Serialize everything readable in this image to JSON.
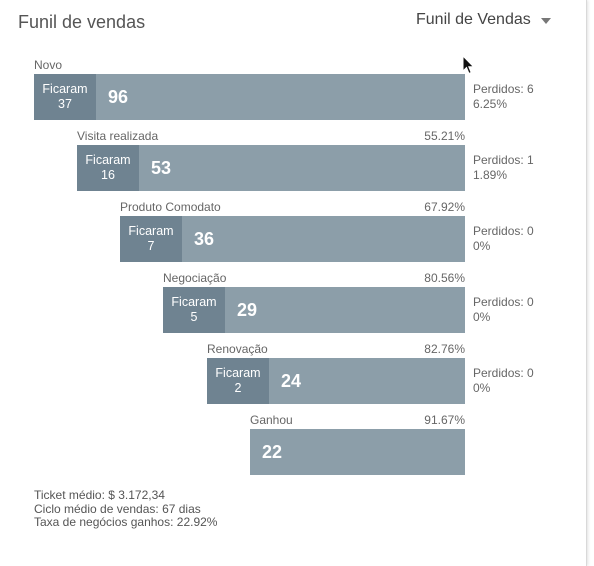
{
  "header": {
    "title": "Funil de vendas",
    "selector_label": "Funil de Vendas"
  },
  "stages": [
    {
      "name": "Novo",
      "percent": "",
      "stay_label": "Ficaram",
      "stay_count": "37",
      "value": "96",
      "lost_label": "Perdidos: 6",
      "lost_percent": "6.25%"
    },
    {
      "name": "Visita realizada",
      "percent": "55.21%",
      "stay_label": "Ficaram",
      "stay_count": "16",
      "value": "53",
      "lost_label": "Perdidos: 1",
      "lost_percent": "1.89%"
    },
    {
      "name": "Produto Comodato",
      "percent": "67.92%",
      "stay_label": "Ficaram",
      "stay_count": "7",
      "value": "36",
      "lost_label": "Perdidos: 0",
      "lost_percent": "0%"
    },
    {
      "name": "Negociação",
      "percent": "80.56%",
      "stay_label": "Ficaram",
      "stay_count": "5",
      "value": "29",
      "lost_label": "Perdidos: 0",
      "lost_percent": "0%"
    },
    {
      "name": "Renovação",
      "percent": "82.76%",
      "stay_label": "Ficaram",
      "stay_count": "2",
      "value": "24",
      "lost_label": "Perdidos: 0",
      "lost_percent": "0%"
    },
    {
      "name": "Ganhou",
      "percent": "91.67%",
      "value": "22"
    }
  ],
  "footer": {
    "ticket": "Ticket médio: $ 3.172,34",
    "cycle": "Ciclo médio de vendas: 67 dias",
    "rate": "Taxa de negócios ganhos: 22.92%"
  },
  "colors": {
    "bar": "#8c9ea9",
    "stay_box": "#6f8391",
    "text_muted": "#666666"
  },
  "icons": {
    "dropdown": "caret-down-icon",
    "cursor": "mouse-pointer-icon"
  }
}
